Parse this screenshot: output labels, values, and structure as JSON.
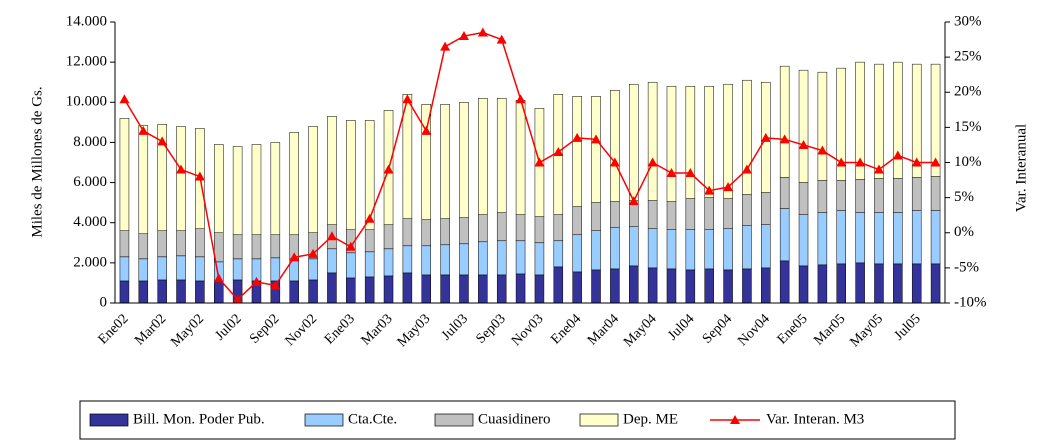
{
  "chart_data": {
    "type": "bar",
    "y_label": "Miles de Millones de Gs.",
    "y2_label": "Var. Interanual",
    "categories": [
      "Ene02",
      null,
      "Mar02",
      null,
      "May02",
      null,
      "Jul02",
      null,
      "Sep02",
      null,
      "Nov02",
      null,
      "Ene03",
      null,
      "Mar03",
      null,
      "May03",
      null,
      "Jul03",
      null,
      "Sep03",
      null,
      "Nov03",
      null,
      "Ene04",
      null,
      "Mar04",
      null,
      "May04",
      null,
      "Jul04",
      null,
      "Sep04",
      null,
      "Nov04",
      null,
      "Ene05",
      null,
      "Mar05",
      null,
      "May05",
      null,
      "Jul05",
      null
    ],
    "stacked": true,
    "series": [
      {
        "name": "Bill. Mon. Poder Pub.",
        "color": "#333399",
        "values": [
          1100,
          1100,
          1150,
          1150,
          1100,
          1050,
          1150,
          1100,
          1100,
          1100,
          1150,
          1500,
          1250,
          1300,
          1350,
          1500,
          1400,
          1400,
          1400,
          1400,
          1400,
          1450,
          1400,
          1800,
          1550,
          1650,
          1700,
          1850,
          1750,
          1700,
          1650,
          1700,
          1650,
          1700,
          1750,
          2100,
          1850,
          1900,
          1950,
          2000,
          1950,
          1950,
          1950,
          1950
        ]
      },
      {
        "name": "Cta.Cte.",
        "color": "#99ccff",
        "values": [
          1200,
          1100,
          1150,
          1200,
          1200,
          1000,
          1050,
          1100,
          1150,
          1100,
          1050,
          1200,
          1250,
          1250,
          1350,
          1350,
          1450,
          1500,
          1550,
          1650,
          1700,
          1650,
          1600,
          1300,
          1850,
          1950,
          2050,
          1950,
          1950,
          1950,
          2000,
          1950,
          2050,
          2150,
          2150,
          2600,
          2550,
          2600,
          2650,
          2500,
          2550,
          2550,
          2650,
          2650
        ]
      },
      {
        "name": "Cuasidinero",
        "color": "#c0c0c0",
        "values": [
          1300,
          1250,
          1300,
          1250,
          1400,
          1450,
          1200,
          1200,
          1150,
          1200,
          1300,
          1200,
          1150,
          1100,
          1200,
          1350,
          1300,
          1300,
          1300,
          1350,
          1400,
          1300,
          1300,
          1300,
          1400,
          1400,
          1300,
          1300,
          1400,
          1400,
          1550,
          1600,
          1500,
          1550,
          1600,
          1550,
          1600,
          1600,
          1500,
          1650,
          1700,
          1700,
          1650,
          1700
        ]
      },
      {
        "name": "Dep. ME",
        "color": "#ffffcc",
        "values": [
          5600,
          5400,
          5300,
          5200,
          5000,
          4400,
          4400,
          4500,
          4600,
          5100,
          5300,
          5400,
          5450,
          5450,
          5700,
          6200,
          5750,
          5700,
          5750,
          5800,
          5700,
          5700,
          5400,
          6000,
          5500,
          5300,
          5550,
          5800,
          5900,
          5750,
          5600,
          5550,
          5700,
          5700,
          5500,
          5550,
          5600,
          5400,
          5600,
          5850,
          5700,
          5800,
          5650,
          5600
        ]
      },
      {
        "name": "Var. Interan. M3",
        "color": "#ff0000",
        "axis": "y2",
        "values": [
          19,
          14.5,
          13,
          9,
          8,
          -6.5,
          -9.5,
          -7,
          -7.5,
          -3.5,
          -3,
          -0.5,
          -2,
          2,
          9,
          19,
          14.5,
          26.5,
          28,
          28.5,
          27.5,
          19,
          10,
          11.5,
          13.5,
          13.3,
          10,
          4.5,
          10,
          8.5,
          8.5,
          6,
          6.5,
          9,
          13.5,
          13.3,
          12.5,
          11.7,
          10,
          10,
          9,
          11,
          10,
          10
        ]
      }
    ],
    "ylim": [
      0,
      14000
    ],
    "yticks": [
      0,
      {
        "value": 2000,
        "label": "2.000"
      },
      {
        "value": 4000,
        "label": "4.000"
      },
      {
        "value": 6000,
        "label": "6.000"
      },
      {
        "value": 8000,
        "label": "8.000"
      },
      {
        "value": 10000,
        "label": "10.000"
      },
      {
        "value": 12000,
        "label": "12.000"
      },
      {
        "value": 14000,
        "label": "14.000"
      }
    ],
    "y2lim": [
      -10,
      30
    ],
    "y2ticks": [
      {
        "value": -10,
        "label": "-10%"
      },
      {
        "value": -5,
        "label": "-5%"
      },
      {
        "value": 0,
        "label": "0%"
      },
      {
        "value": 5,
        "label": "5%"
      },
      {
        "value": 10,
        "label": "10%"
      },
      {
        "value": 15,
        "label": "15%"
      },
      {
        "value": 20,
        "label": "20%"
      },
      {
        "value": 25,
        "label": "25%"
      },
      {
        "value": 30,
        "label": "30%"
      }
    ],
    "grid": false,
    "legend": "bottom"
  }
}
